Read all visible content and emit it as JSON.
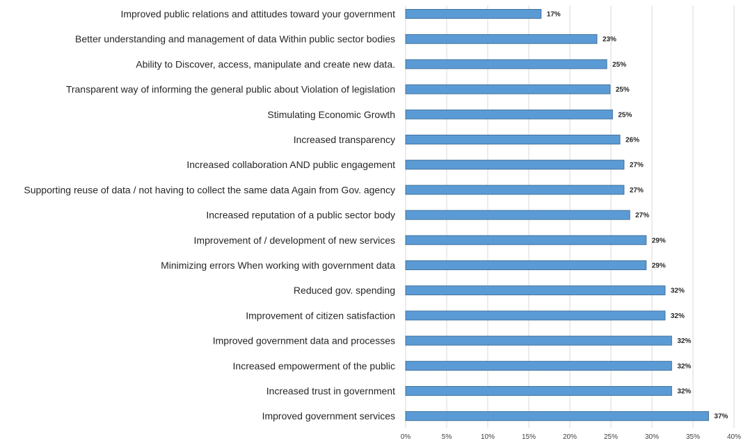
{
  "chart_data": {
    "type": "bar",
    "orientation": "horizontal",
    "title": "",
    "xlabel": "",
    "ylabel": "",
    "categories": [
      "Improved public relations and attitudes toward your government",
      "Better understanding and management of data Within public sector bodies",
      "Ability to Discover, access, manipulate and create new data.",
      "Transparent way of informing the general public about Violation of legislation",
      "Stimulating Economic Growth",
      "Increased transparency",
      "Increased collaboration AND public engagement",
      "Supporting reuse of data / not having to collect the same data Again from Gov. agency",
      "Increased reputation of a public sector body",
      "Improvement of / development of new services",
      "Minimizing errors When working with government data",
      "Reduced gov. spending",
      "Improvement of citizen satisfaction",
      "Improved government data and processes",
      "Increased empowerment of the public",
      "Increased trust in government",
      "Improved government services"
    ],
    "values": [
      16.5,
      23.3,
      24.5,
      24.9,
      25.2,
      26.1,
      26.6,
      26.6,
      27.3,
      29.3,
      29.3,
      31.6,
      31.6,
      32.4,
      32.4,
      32.4,
      36.9
    ],
    "value_labels": [
      "17%",
      "23%",
      "25%",
      "25%",
      "25%",
      "26%",
      "27%",
      "27%",
      "27%",
      "29%",
      "29%",
      "32%",
      "32%",
      "32%",
      "32%",
      "32%",
      "37%"
    ],
    "xlim": [
      0,
      40
    ],
    "xticks": [
      0,
      5,
      10,
      15,
      20,
      25,
      30,
      35,
      40
    ],
    "xtick_labels": [
      "0%",
      "5%",
      "10%",
      "15%",
      "20%",
      "25%",
      "30%",
      "35%",
      "40%"
    ],
    "grid": true,
    "legend": "none",
    "colors": {
      "bar_fill": "#5b9bd5",
      "bar_edge": "#41719c",
      "grid": "#d9d9d9",
      "text": "#262626"
    }
  }
}
